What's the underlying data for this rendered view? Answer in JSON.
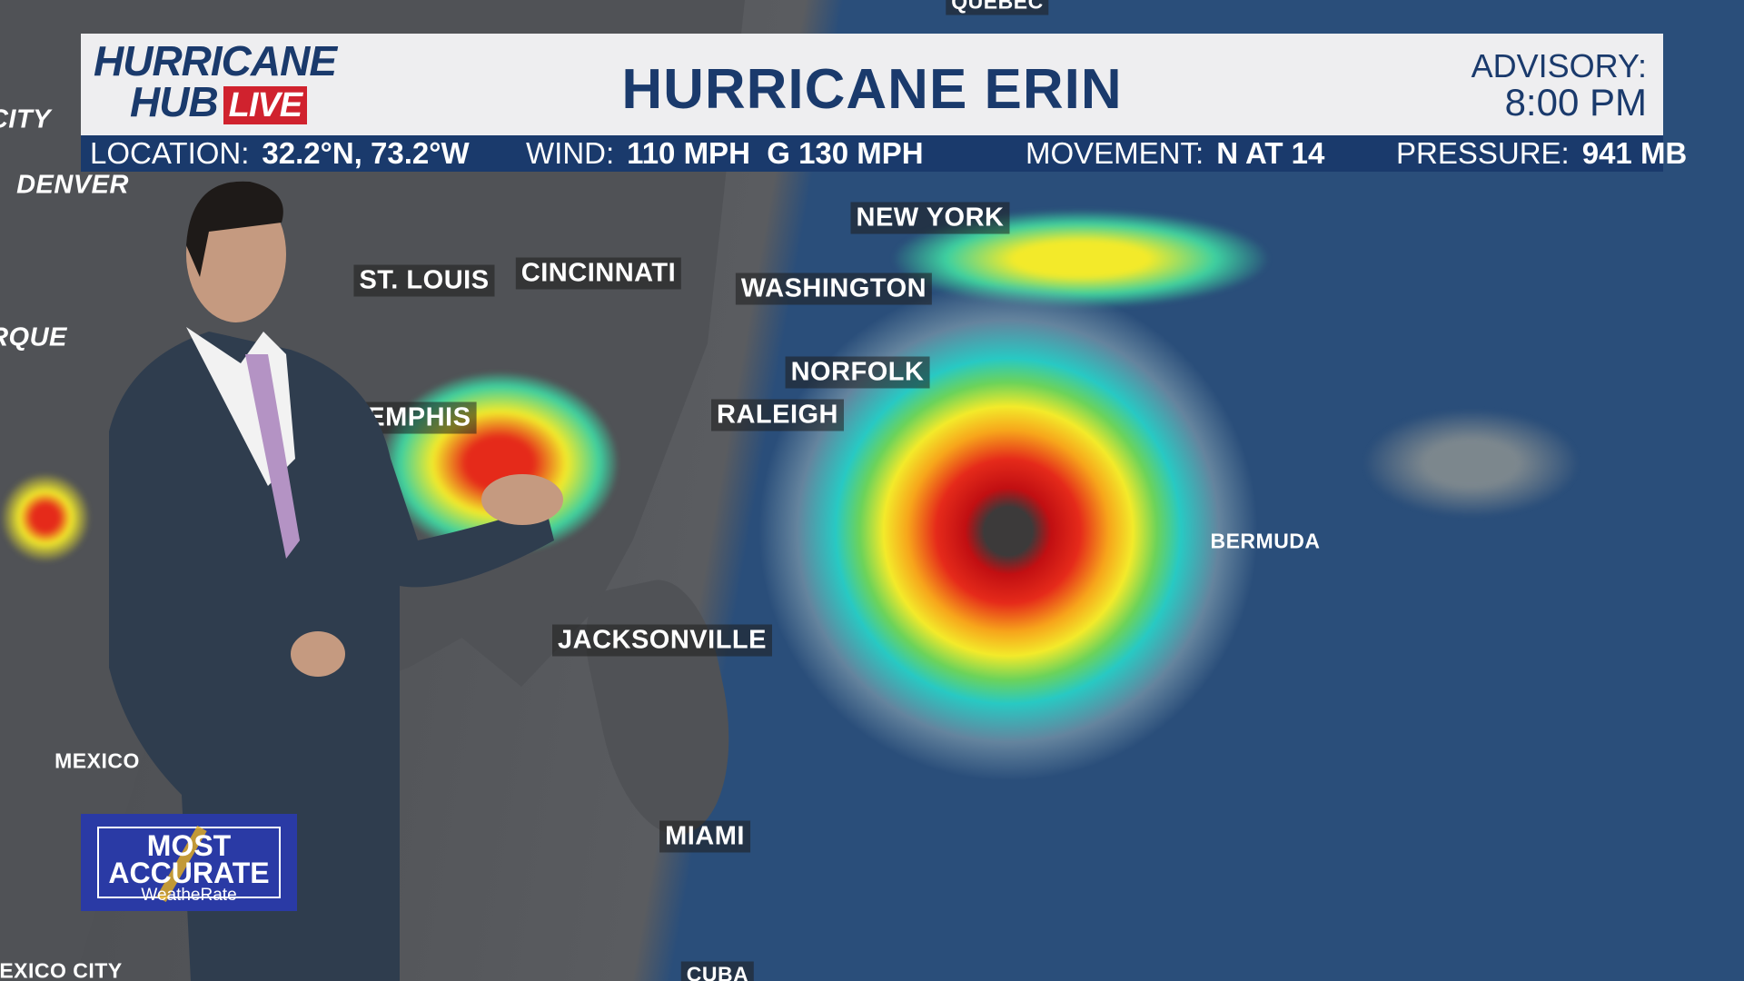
{
  "header": {
    "logo": {
      "line1": "HURRICANE",
      "line2": "HUB",
      "badge": "LIVE"
    },
    "title": "HURRICANE ERIN",
    "advisory_label": "ADVISORY:",
    "advisory_time": "8:00 PM",
    "location_label": "LOCATION:",
    "location_value": "32.2°N, 73.2°W",
    "wind_label": "WIND:",
    "wind_value": "110 MPH  G 130 MPH",
    "movement_label": "MOVEMENT:",
    "movement_value": "N AT 14",
    "pressure_label": "PRESSURE:",
    "pressure_value": "941 MB"
  },
  "map": {
    "labels": [
      "QUEBEC",
      "CITY",
      "DENVER",
      "RQUE",
      "ST. LOUIS",
      "CINCINNATI",
      "NEW YORK",
      "WASHINGTON",
      "NORFOLK",
      "RALEIGH",
      "MEMPHIS",
      "BERMUDA",
      "JACKSONVILLE",
      "MEXICO",
      "MIAMI",
      "CUBA",
      "EXICO CITY"
    ]
  },
  "badge": {
    "line1": "MOST",
    "line2": "ACCURATE",
    "brand": "WeatheRate"
  },
  "colors": {
    "brand_navy": "#1a3a6c",
    "live_red": "#d0222e",
    "badge_blue": "#2a3aa5"
  }
}
